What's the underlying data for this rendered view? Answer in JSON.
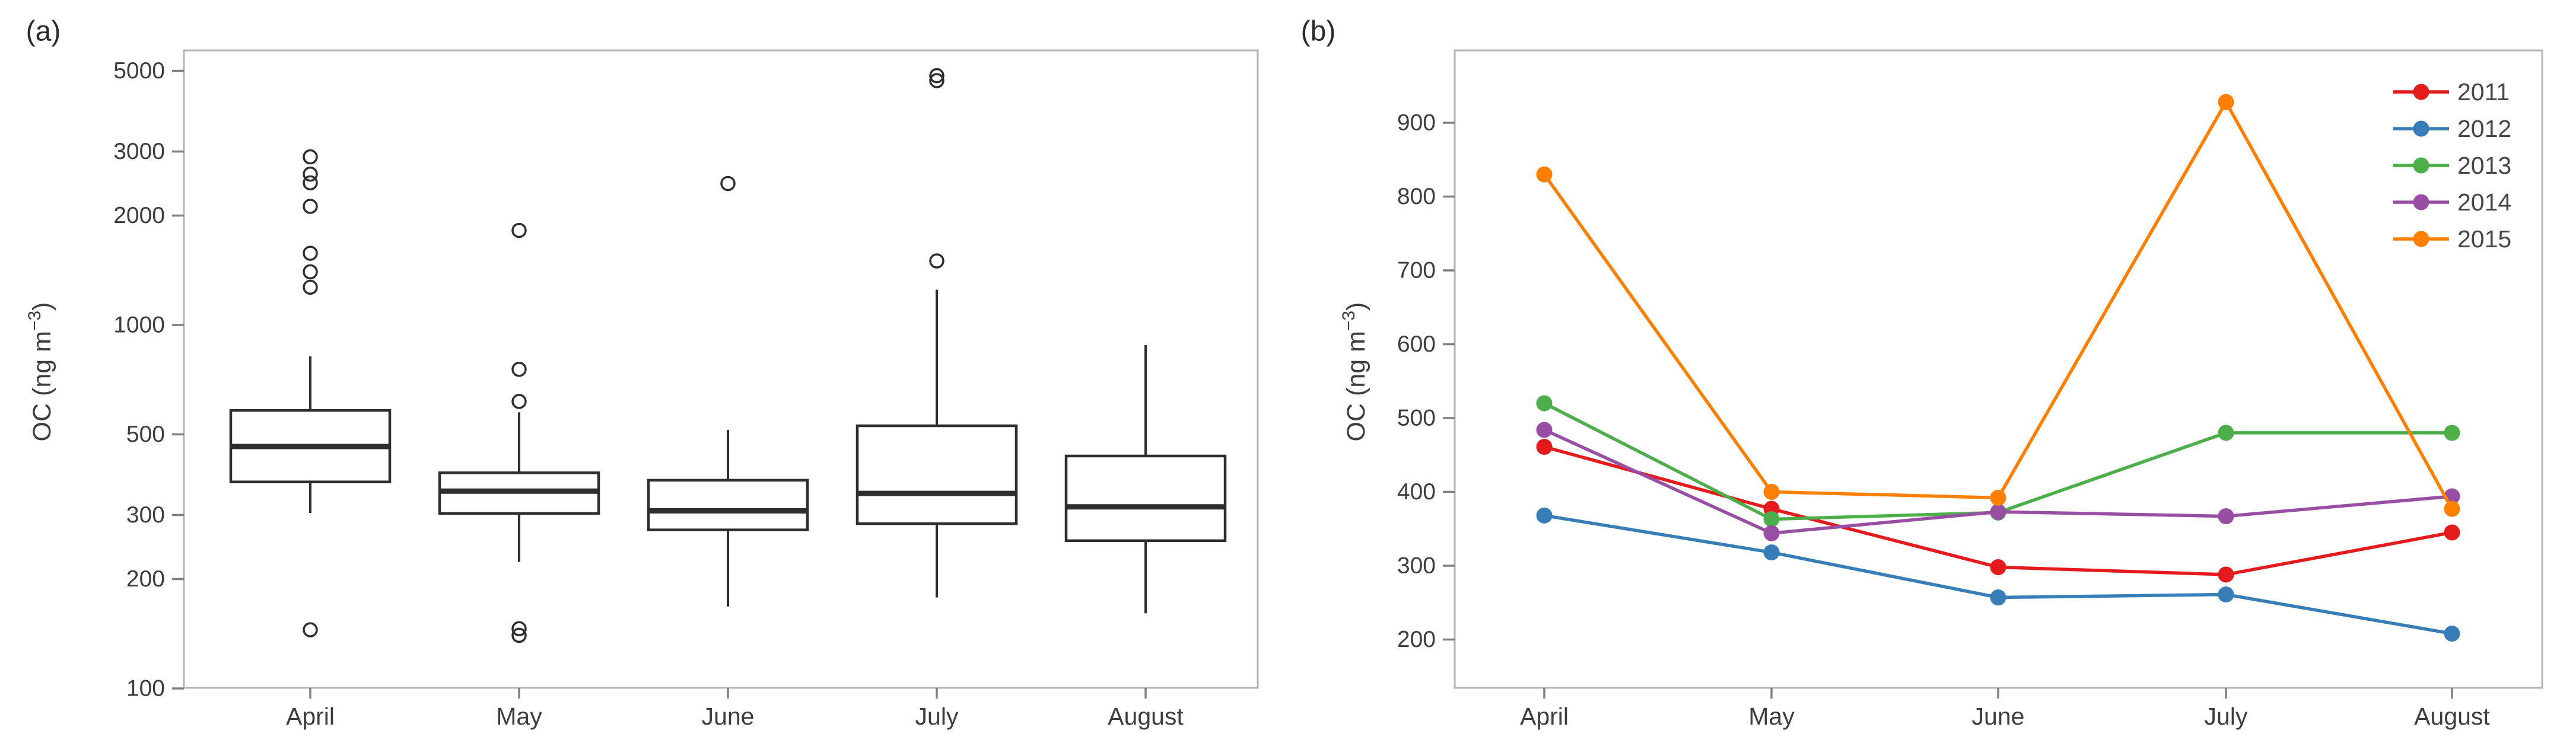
{
  "figure": {
    "panel_a": {
      "label": "(a)"
    },
    "panel_b": {
      "label": "(b)"
    },
    "ylabel_parts": {
      "prefix": "OC (ng m",
      "sup": "−3",
      "suffix": ")"
    }
  },
  "chart_data": [
    {
      "type": "boxplot",
      "panel": "a",
      "title": "(a)",
      "ylabel": "OC (ng m-3)",
      "yscale": "log",
      "ylim": [
        100,
        5480
      ],
      "yticks": [
        100,
        200,
        300,
        500,
        1000,
        2000,
        3000,
        5000
      ],
      "categories": [
        "April",
        "May",
        "June",
        "July",
        "August"
      ],
      "grid": false,
      "box_color": "#2e2e2e",
      "boxes": [
        {
          "category": "April",
          "whislo": 304,
          "q1": 370,
          "median": 463,
          "q3": 582,
          "whishi": 820,
          "outliers": [
            145,
            1270,
            1400,
            1575,
            2120,
            2460,
            2600,
            2900
          ]
        },
        {
          "category": "May",
          "whislo": 223,
          "q1": 303,
          "median": 349,
          "q3": 392,
          "whishi": 575,
          "outliers": [
            140,
            146,
            616,
            755,
            1820
          ]
        },
        {
          "category": "June",
          "whislo": 168,
          "q1": 273,
          "median": 308,
          "q3": 374,
          "whishi": 514,
          "outliers": [
            2450
          ]
        },
        {
          "category": "July",
          "whislo": 178,
          "q1": 284,
          "median": 344,
          "q3": 528,
          "whishi": 1250,
          "outliers": [
            1500,
            4700,
            4850
          ]
        },
        {
          "category": "August",
          "whislo": 161,
          "q1": 255,
          "median": 316,
          "q3": 436,
          "whishi": 880,
          "outliers": []
        }
      ]
    },
    {
      "type": "line",
      "panel": "b",
      "title": "(b)",
      "ylabel": "OC (ng m-3)",
      "yscale": "linear",
      "ylim": [
        135,
        990
      ],
      "yticks": [
        200,
        300,
        400,
        500,
        600,
        700,
        800,
        900
      ],
      "categories": [
        "April",
        "May",
        "June",
        "July",
        "August"
      ],
      "grid": false,
      "legend_position": "top-right",
      "series": [
        {
          "name": "2011",
          "color": "#e41a1c",
          "values": [
            461,
            377,
            298,
            288,
            345
          ]
        },
        {
          "name": "2012",
          "color": "#377eb8",
          "values": [
            368,
            318,
            257,
            261,
            208
          ]
        },
        {
          "name": "2013",
          "color": "#4daf4a",
          "values": [
            520,
            363,
            372,
            480,
            480
          ]
        },
        {
          "name": "2014",
          "color": "#984ea3",
          "values": [
            484,
            344,
            373,
            367,
            394
          ]
        },
        {
          "name": "2015",
          "color": "#ff7f00",
          "values": [
            830,
            400,
            392,
            928,
            377
          ]
        }
      ]
    }
  ],
  "style_colors": {
    "frame": "#b3b3b3",
    "tick": "#808080",
    "tick_label": "#3d3d3d",
    "axis_text": "#3d3d3d",
    "legend_text": "#464646"
  }
}
